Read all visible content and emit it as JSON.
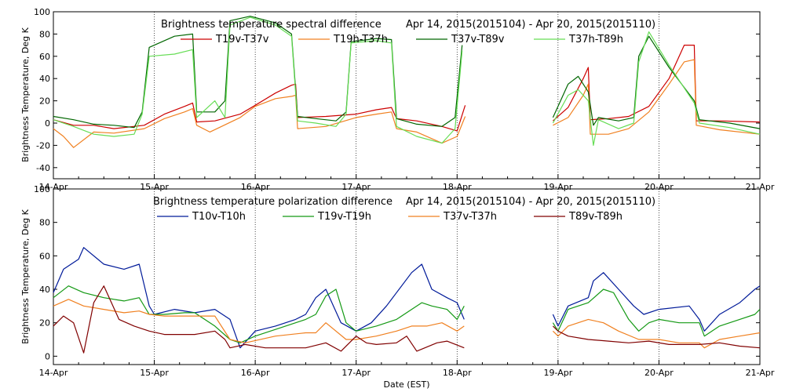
{
  "chart_data": [
    {
      "type": "line",
      "title_left": "Brightness temperature spectral difference",
      "title_right": "Apr 14, 2015(2015104) - Apr 20, 2015(2015110)",
      "ylabel": "Brightness Temperature, Deg K",
      "xlabel": "",
      "ylim": [
        -50,
        100
      ],
      "y_ticks": [
        "-40",
        "-20",
        "0",
        "20",
        "40",
        "60",
        "80",
        "100"
      ],
      "x_ticks": [
        "14-Apr",
        "15-Apr",
        "16-Apr",
        "17-Apr",
        "18-Apr",
        "19-Apr",
        "20-Apr",
        "21-Apr"
      ],
      "x_range_days": [
        0,
        7
      ],
      "series": [
        {
          "name": "T19v-T37v",
          "color": "#cc0000",
          "x": [
            0,
            0.2,
            0.4,
            0.6,
            0.9,
            1.1,
            1.3,
            1.38,
            1.42,
            1.6,
            1.85,
            2.0,
            2.2,
            2.36,
            2.4,
            2.42,
            2.7,
            3.0,
            3.2,
            3.35,
            3.4,
            3.6,
            3.85,
            4.0,
            4.08,
            null,
            4.95,
            5.1,
            5.25,
            5.3,
            5.32,
            5.5,
            5.7,
            5.9,
            6.1,
            6.25,
            6.35,
            6.37,
            6.6,
            7.0
          ],
          "y": [
            3,
            -2,
            -2,
            -5,
            -2,
            8,
            15,
            18,
            1,
            2,
            8,
            16,
            27,
            34,
            35,
            5,
            6,
            8,
            12,
            14,
            4,
            2,
            -3,
            -7,
            16,
            null,
            2,
            14,
            40,
            50,
            3,
            4,
            6,
            15,
            40,
            70,
            70,
            2,
            2,
            1
          ]
        },
        {
          "name": "T19h-T37h",
          "color": "#f08020",
          "x": [
            0,
            0.1,
            0.2,
            0.4,
            0.6,
            0.9,
            1.1,
            1.3,
            1.38,
            1.42,
            1.55,
            1.85,
            2.0,
            2.2,
            2.36,
            2.4,
            2.42,
            2.7,
            3.0,
            3.2,
            3.35,
            3.4,
            3.6,
            3.85,
            4.0,
            4.08,
            null,
            4.95,
            5.1,
            5.25,
            5.3,
            5.32,
            5.5,
            5.7,
            5.9,
            6.1,
            6.25,
            6.35,
            6.37,
            6.6,
            7.0
          ],
          "y": [
            -5,
            -12,
            -22,
            -8,
            -9,
            -5,
            4,
            10,
            13,
            -2,
            -8,
            5,
            15,
            22,
            24,
            25,
            -5,
            -3,
            5,
            8,
            10,
            -5,
            -8,
            -18,
            -12,
            6,
            null,
            -2,
            5,
            25,
            35,
            -10,
            -10,
            -5,
            10,
            35,
            55,
            57,
            -2,
            -6,
            -10
          ]
        },
        {
          "name": "T37v-T89v",
          "color": "#006600",
          "x": [
            0,
            0.2,
            0.4,
            0.6,
            0.8,
            0.88,
            0.95,
            1.2,
            1.38,
            1.42,
            1.6,
            1.7,
            1.75,
            1.95,
            2.2,
            2.36,
            2.42,
            2.6,
            2.8,
            2.9,
            2.95,
            3.2,
            3.35,
            3.4,
            3.6,
            3.85,
            3.98,
            4.05,
            null,
            4.95,
            5.1,
            5.2,
            5.3,
            5.35,
            5.4,
            5.6,
            5.75,
            5.8,
            5.9,
            6.1,
            6.35,
            6.4,
            6.7,
            7.0
          ],
          "y": [
            6,
            3,
            -1,
            -2,
            -4,
            10,
            68,
            78,
            80,
            10,
            10,
            20,
            92,
            96,
            90,
            80,
            6,
            4,
            2,
            10,
            73,
            76,
            75,
            4,
            -1,
            -3,
            5,
            70,
            null,
            5,
            35,
            42,
            28,
            -2,
            5,
            2,
            5,
            60,
            78,
            50,
            20,
            3,
            0,
            -5
          ]
        },
        {
          "name": "T37h-T89h",
          "color": "#66dd55",
          "x": [
            0,
            0.2,
            0.4,
            0.6,
            0.8,
            0.88,
            0.95,
            1.2,
            1.38,
            1.42,
            1.6,
            1.7,
            1.75,
            1.95,
            2.2,
            2.36,
            2.42,
            2.6,
            2.8,
            2.9,
            2.95,
            3.2,
            3.35,
            3.4,
            3.6,
            3.85,
            3.98,
            4.05,
            null,
            4.95,
            5.1,
            5.2,
            5.3,
            5.35,
            5.4,
            5.6,
            5.75,
            5.8,
            5.9,
            6.1,
            6.35,
            6.4,
            6.7,
            7.0
          ],
          "y": [
            3,
            -3,
            -10,
            -12,
            -10,
            8,
            60,
            62,
            66,
            5,
            20,
            5,
            88,
            95,
            88,
            78,
            2,
            0,
            -3,
            8,
            72,
            74,
            72,
            -3,
            -12,
            -18,
            -5,
            65,
            null,
            0,
            25,
            30,
            20,
            -20,
            3,
            -5,
            0,
            55,
            82,
            52,
            18,
            0,
            -4,
            -10
          ]
        }
      ]
    },
    {
      "type": "line",
      "title_left": "Brightness temperature polarization difference",
      "title_right": "Apr 14, 2015(2015104) - Apr 20, 2015(2015110)",
      "ylabel": "Brightness Temperature, Deg K",
      "xlabel": "Date (EST)",
      "ylim": [
        -5,
        100
      ],
      "y_ticks": [
        "0",
        "20",
        "40",
        "60",
        "80",
        "100"
      ],
      "x_ticks": [
        "14-Apr",
        "15-Apr",
        "16-Apr",
        "17-Apr",
        "18-Apr",
        "19-Apr",
        "20-Apr",
        "21-Apr"
      ],
      "x_range_days": [
        0,
        7
      ],
      "series": [
        {
          "name": "T10v-T10h",
          "color": "#001a99",
          "x": [
            0,
            0.1,
            0.25,
            0.3,
            0.5,
            0.7,
            0.85,
            0.95,
            1.0,
            1.2,
            1.4,
            1.6,
            1.75,
            1.85,
            2.0,
            2.2,
            2.4,
            2.5,
            2.6,
            2.7,
            2.85,
            3.0,
            3.15,
            3.3,
            3.4,
            3.55,
            3.65,
            3.75,
            3.9,
            4.0,
            4.07,
            null,
            4.95,
            5.0,
            5.1,
            5.3,
            5.35,
            5.45,
            5.6,
            5.75,
            5.85,
            6.0,
            6.3,
            6.4,
            6.45,
            6.6,
            6.8,
            6.95,
            7.0
          ],
          "y": [
            38,
            52,
            58,
            65,
            55,
            52,
            55,
            30,
            25,
            28,
            26,
            28,
            22,
            5,
            15,
            18,
            22,
            25,
            35,
            40,
            20,
            15,
            20,
            30,
            38,
            50,
            55,
            40,
            35,
            32,
            22,
            null,
            25,
            18,
            30,
            35,
            45,
            50,
            40,
            30,
            25,
            28,
            30,
            22,
            15,
            25,
            32,
            40,
            42
          ]
        },
        {
          "name": "T19v-T19h",
          "color": "#149914",
          "x": [
            0,
            0.15,
            0.3,
            0.5,
            0.7,
            0.85,
            0.95,
            1.1,
            1.3,
            1.4,
            1.6,
            1.75,
            1.85,
            2.0,
            2.2,
            2.4,
            2.5,
            2.6,
            2.7,
            2.8,
            2.9,
            3.0,
            3.2,
            3.4,
            3.55,
            3.65,
            3.75,
            3.9,
            4.0,
            4.07,
            null,
            4.95,
            5.0,
            5.1,
            5.3,
            5.45,
            5.55,
            5.7,
            5.8,
            5.9,
            6.0,
            6.2,
            6.4,
            6.45,
            6.6,
            6.8,
            6.95,
            7.0
          ],
          "y": [
            35,
            42,
            38,
            35,
            33,
            35,
            25,
            25,
            26,
            26,
            18,
            10,
            8,
            12,
            16,
            20,
            22,
            25,
            36,
            40,
            20,
            15,
            18,
            22,
            28,
            32,
            30,
            28,
            22,
            30,
            null,
            20,
            15,
            28,
            32,
            40,
            38,
            22,
            15,
            20,
            22,
            20,
            20,
            12,
            18,
            22,
            25,
            28
          ]
        },
        {
          "name": "T37v-T37h",
          "color": "#f08020",
          "x": [
            0,
            0.15,
            0.3,
            0.5,
            0.7,
            0.85,
            0.95,
            1.1,
            1.4,
            1.6,
            1.75,
            1.9,
            2.2,
            2.5,
            2.6,
            2.7,
            2.9,
            3.0,
            3.2,
            3.4,
            3.55,
            3.7,
            3.85,
            4.0,
            4.07,
            null,
            4.95,
            5.0,
            5.1,
            5.3,
            5.45,
            5.6,
            5.8,
            6.0,
            6.2,
            6.4,
            6.45,
            6.6,
            6.8,
            7.0
          ],
          "y": [
            30,
            34,
            30,
            28,
            26,
            27,
            25,
            24,
            24,
            24,
            10,
            8,
            12,
            14,
            14,
            20,
            10,
            10,
            12,
            15,
            18,
            18,
            20,
            15,
            18,
            null,
            15,
            12,
            18,
            22,
            20,
            15,
            10,
            10,
            8,
            8,
            5,
            10,
            12,
            14
          ]
        },
        {
          "name": "T89v-T89h",
          "color": "#800000",
          "x": [
            0,
            0.1,
            0.2,
            0.3,
            0.4,
            0.5,
            0.65,
            0.8,
            0.95,
            1.1,
            1.4,
            1.6,
            1.7,
            1.75,
            1.9,
            2.1,
            2.3,
            2.5,
            2.7,
            2.85,
            3.0,
            3.1,
            3.2,
            3.4,
            3.5,
            3.6,
            3.8,
            3.9,
            4.07,
            null,
            4.95,
            5.0,
            5.1,
            5.3,
            5.5,
            5.7,
            5.9,
            6.1,
            6.4,
            6.6,
            6.8,
            7.0
          ],
          "y": [
            18,
            24,
            20,
            2,
            32,
            42,
            22,
            18,
            15,
            13,
            13,
            15,
            10,
            5,
            7,
            5,
            5,
            5,
            8,
            3,
            12,
            8,
            7,
            8,
            12,
            3,
            8,
            9,
            5,
            null,
            18,
            15,
            12,
            10,
            9,
            8,
            9,
            7,
            7,
            8,
            6,
            5
          ]
        }
      ]
    }
  ]
}
